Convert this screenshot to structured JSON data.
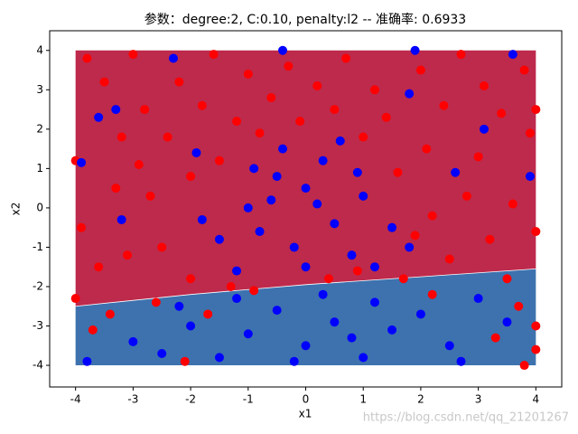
{
  "chart_data": {
    "type": "scatter",
    "title": "参数：degree:2, C:0.10, penalty:l2 -- 准确率: 0.6933",
    "x_label": "x1",
    "y_label": "x2",
    "watermark": "https://blog.csdn.net/qq_21201267",
    "xlim": [
      -4.45,
      4.45
    ],
    "ylim": [
      -4.55,
      4.5
    ],
    "xticks": [
      -4,
      -3,
      -2,
      -1,
      0,
      1,
      2,
      3,
      4
    ],
    "yticks": [
      -4,
      -3,
      -2,
      -1,
      0,
      1,
      2,
      3,
      4
    ],
    "regions": {
      "x_range": [
        -4,
        4
      ],
      "y_range": [
        -4,
        4
      ],
      "upper_color": "#bd2a4c",
      "lower_color": "#3d72ae",
      "boundary": {
        "x": [
          -4,
          -2,
          0,
          2,
          4
        ],
        "y": [
          -2.5,
          -2.2,
          -1.95,
          -1.75,
          -1.55
        ]
      }
    },
    "series": [
      {
        "color": "#ff0000",
        "x": [
          -4,
          -3.8,
          -3.5,
          -3.2,
          -3.9,
          -3.6,
          -3.3,
          -3,
          -2.8,
          -2.7,
          -2.5,
          -2.4,
          -2.2,
          -2,
          -2,
          -1.8,
          -1.6,
          -1.5,
          -1.3,
          -1.2,
          -1,
          -0.8,
          -0.6,
          -0.3,
          -0.1,
          0.2,
          0.4,
          0.5,
          0.7,
          1,
          1.2,
          1.4,
          1.6,
          1.7,
          2,
          2.1,
          2.2,
          2.4,
          2.5,
          2.7,
          2.8,
          3,
          3.1,
          3.2,
          3.4,
          3.5,
          3.6,
          3.8,
          3.9,
          4,
          4,
          3.8,
          3.3,
          2.2,
          -4,
          -3.7,
          -3.4,
          -2.6,
          -2.1,
          -1.7,
          4,
          4,
          -3.1,
          -0.9,
          1.9,
          3.7,
          -2.9,
          0.9
        ],
        "y": [
          1.2,
          3.8,
          3.2,
          1.8,
          -0.5,
          -1.5,
          0.5,
          3.9,
          2.5,
          0.3,
          -1,
          1.8,
          3.2,
          -1.8,
          0.8,
          2.6,
          3.9,
          1.2,
          -2,
          2.2,
          3.4,
          1.9,
          2.8,
          3.6,
          2.2,
          3.1,
          -1.8,
          2.5,
          3.8,
          1.8,
          3,
          2.3,
          0.9,
          -1.8,
          3.5,
          1.5,
          -0.2,
          2.6,
          -1.3,
          3.9,
          0.3,
          1.3,
          3.1,
          -0.8,
          2.4,
          -1.8,
          0.1,
          3.5,
          1.9,
          -0.6,
          -3.6,
          -4,
          -3.3,
          -2.2,
          -2.3,
          -3.1,
          -2.7,
          -2.4,
          -3.9,
          -2.7,
          2.5,
          -3,
          -1.2,
          -2.1,
          -0.7,
          -2.5,
          1.1,
          -1.6
        ]
      },
      {
        "color": "#0000ff",
        "x": [
          -0.5,
          0,
          0.3,
          -1,
          -0.8,
          0.5,
          1,
          -0.2,
          0.8,
          -1.5,
          1.5,
          0.2,
          -0.4,
          0.6,
          -1.2,
          1.2,
          0,
          -0.6,
          1.8,
          -1.8,
          0.9,
          -0.9,
          -3.8,
          -3,
          -2.5,
          -2,
          -1.5,
          -1,
          -0.5,
          0,
          0.5,
          1,
          1.5,
          2,
          2.5,
          3,
          3.5,
          -2.2,
          -1.2,
          0.3,
          1.2,
          2.7,
          -0.2,
          0.8,
          -3.9,
          -3.3,
          -2.3,
          -0.4,
          1.9,
          3.6,
          1.8,
          3.1,
          -1.9,
          -3.6,
          2.6,
          3.9,
          -3.2
        ],
        "y": [
          0.8,
          0.5,
          1.2,
          0,
          -0.6,
          -0.4,
          0.3,
          -1,
          -1.2,
          -0.8,
          -0.5,
          0.1,
          1.5,
          1.7,
          -1.6,
          -1.5,
          -1.5,
          0.2,
          -1,
          -0.3,
          0.9,
          1,
          -3.9,
          -3.4,
          -3.7,
          -3,
          -3.8,
          -3.2,
          -2.6,
          -3.5,
          -2.9,
          -3.8,
          -3.1,
          -2.7,
          -3.5,
          -2.3,
          -2.9,
          -2.5,
          -2.3,
          -2.2,
          -2.4,
          -3.9,
          -3.9,
          -3.3,
          1.15,
          2.5,
          3.8,
          4,
          4,
          3.9,
          2.9,
          2,
          1.4,
          2.3,
          0.9,
          0.8,
          -0.3
        ]
      }
    ]
  }
}
